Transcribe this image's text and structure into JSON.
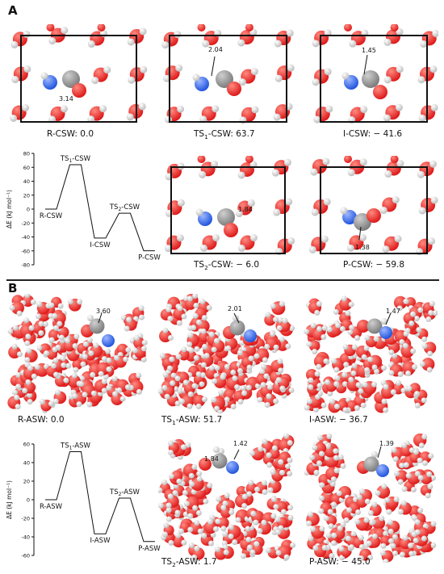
{
  "colors": {
    "oxygen": "#dd1a1a",
    "hydrogen": "#f2f2f2",
    "nitrogen": "#2255dd",
    "carbon": "#7c7c7c",
    "frame": "#111111"
  },
  "sectionA": {
    "label": "A",
    "structures": [
      {
        "caption": "R-CSW: 0.0",
        "distances": [
          "3.14"
        ]
      },
      {
        "caption_parts": [
          "TS",
          "1",
          "-CSW: 63.7"
        ],
        "distances": [
          "2.04"
        ]
      },
      {
        "caption": "I-CSW: − 41.6",
        "distances": [
          "1.45"
        ]
      },
      {
        "caption_parts": [
          "TS",
          "2",
          "-CSW: − 6.0"
        ],
        "distances": [
          "1.84"
        ]
      },
      {
        "caption": "P-CSW: − 59.8",
        "distances": [
          "1.38"
        ]
      }
    ],
    "chart_data": {
      "type": "line",
      "ylabel": "ΔE (kJ mol⁻¹)",
      "ylim": [
        -80,
        80
      ],
      "yticks": [
        80,
        60,
        40,
        20,
        0,
        -20,
        -40,
        -60,
        -80
      ],
      "states": [
        {
          "label": "R-CSW",
          "value": 0.0
        },
        {
          "label_parts": [
            "TS",
            "1",
            "-CSW"
          ],
          "value": 63.7
        },
        {
          "label": "I-CSW",
          "value": -41.6
        },
        {
          "label_parts": [
            "TS",
            "2",
            "-CSW"
          ],
          "value": -6.0
        },
        {
          "label": "P-CSW",
          "value": -59.8
        }
      ]
    }
  },
  "sectionB": {
    "label": "B",
    "structures": [
      {
        "caption": "R-ASW: 0.0",
        "distances": [
          "3.60"
        ]
      },
      {
        "caption_parts": [
          "TS",
          "1",
          "-ASW: 51.7"
        ],
        "distances": [
          "2.01"
        ]
      },
      {
        "caption": "I-ASW: − 36.7",
        "distances": [
          "1.47"
        ]
      },
      {
        "caption_parts": [
          "TS",
          "2",
          "-ASW: 1.7"
        ],
        "distances": [
          "1.84",
          "1.42"
        ]
      },
      {
        "caption": "P-ASW: − 45.0",
        "distances": [
          "1.39"
        ]
      }
    ],
    "chart_data": {
      "type": "line",
      "ylabel": "ΔE (kJ mol⁻¹)",
      "ylim": [
        -60,
        60
      ],
      "yticks": [
        60,
        40,
        20,
        0,
        -20,
        -40,
        -60
      ],
      "states": [
        {
          "label": "R-ASW",
          "value": 0.0
        },
        {
          "label_parts": [
            "TS",
            "1",
            "-ASW"
          ],
          "value": 51.7
        },
        {
          "label": "I-ASW",
          "value": -36.7
        },
        {
          "label_parts": [
            "TS",
            "2",
            "-ASW"
          ],
          "value": 1.7
        },
        {
          "label": "P-ASW",
          "value": -45.0
        }
      ]
    }
  }
}
